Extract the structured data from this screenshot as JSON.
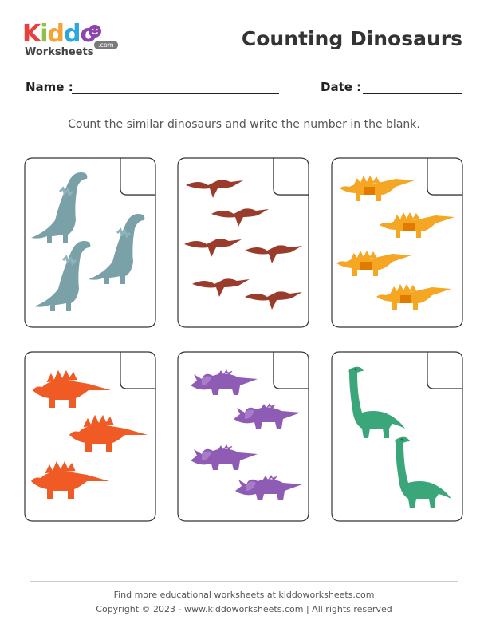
{
  "logo": {
    "letters": [
      "K",
      "i",
      "d",
      "d",
      "o"
    ],
    "letter_colors": [
      "#e8403c",
      "#8bc34a",
      "#f7a233",
      "#2aa7df",
      "#8e44ad"
    ],
    "sub": "Worksheets",
    "badge": ".com",
    "icon": "smiley-icon"
  },
  "title": "Counting Dinosaurs",
  "name_label": "Name :",
  "date_label": "Date :",
  "instructions": "Count the similar dinosaurs and write the number in the blank.",
  "cards": [
    {
      "kind": "brachiosaurus",
      "color": "#7aa0a8",
      "count": 3
    },
    {
      "kind": "pterodactyl",
      "color": "#9a3b2c",
      "count": 6
    },
    {
      "kind": "stegosaurus",
      "color": "#f5a623",
      "count": 4
    },
    {
      "kind": "stegosaurus",
      "color": "#f05a24",
      "count": 3
    },
    {
      "kind": "triceratops",
      "color": "#8e5bb5",
      "count": 4
    },
    {
      "kind": "diplodocus",
      "color": "#3aa67a",
      "count": 2
    }
  ],
  "footer": {
    "line1": "Find more educational worksheets at kiddoworksheets.com",
    "line2": "Copyright © 2023 - www.kiddoworksheets.com  |  All rights reserved"
  }
}
